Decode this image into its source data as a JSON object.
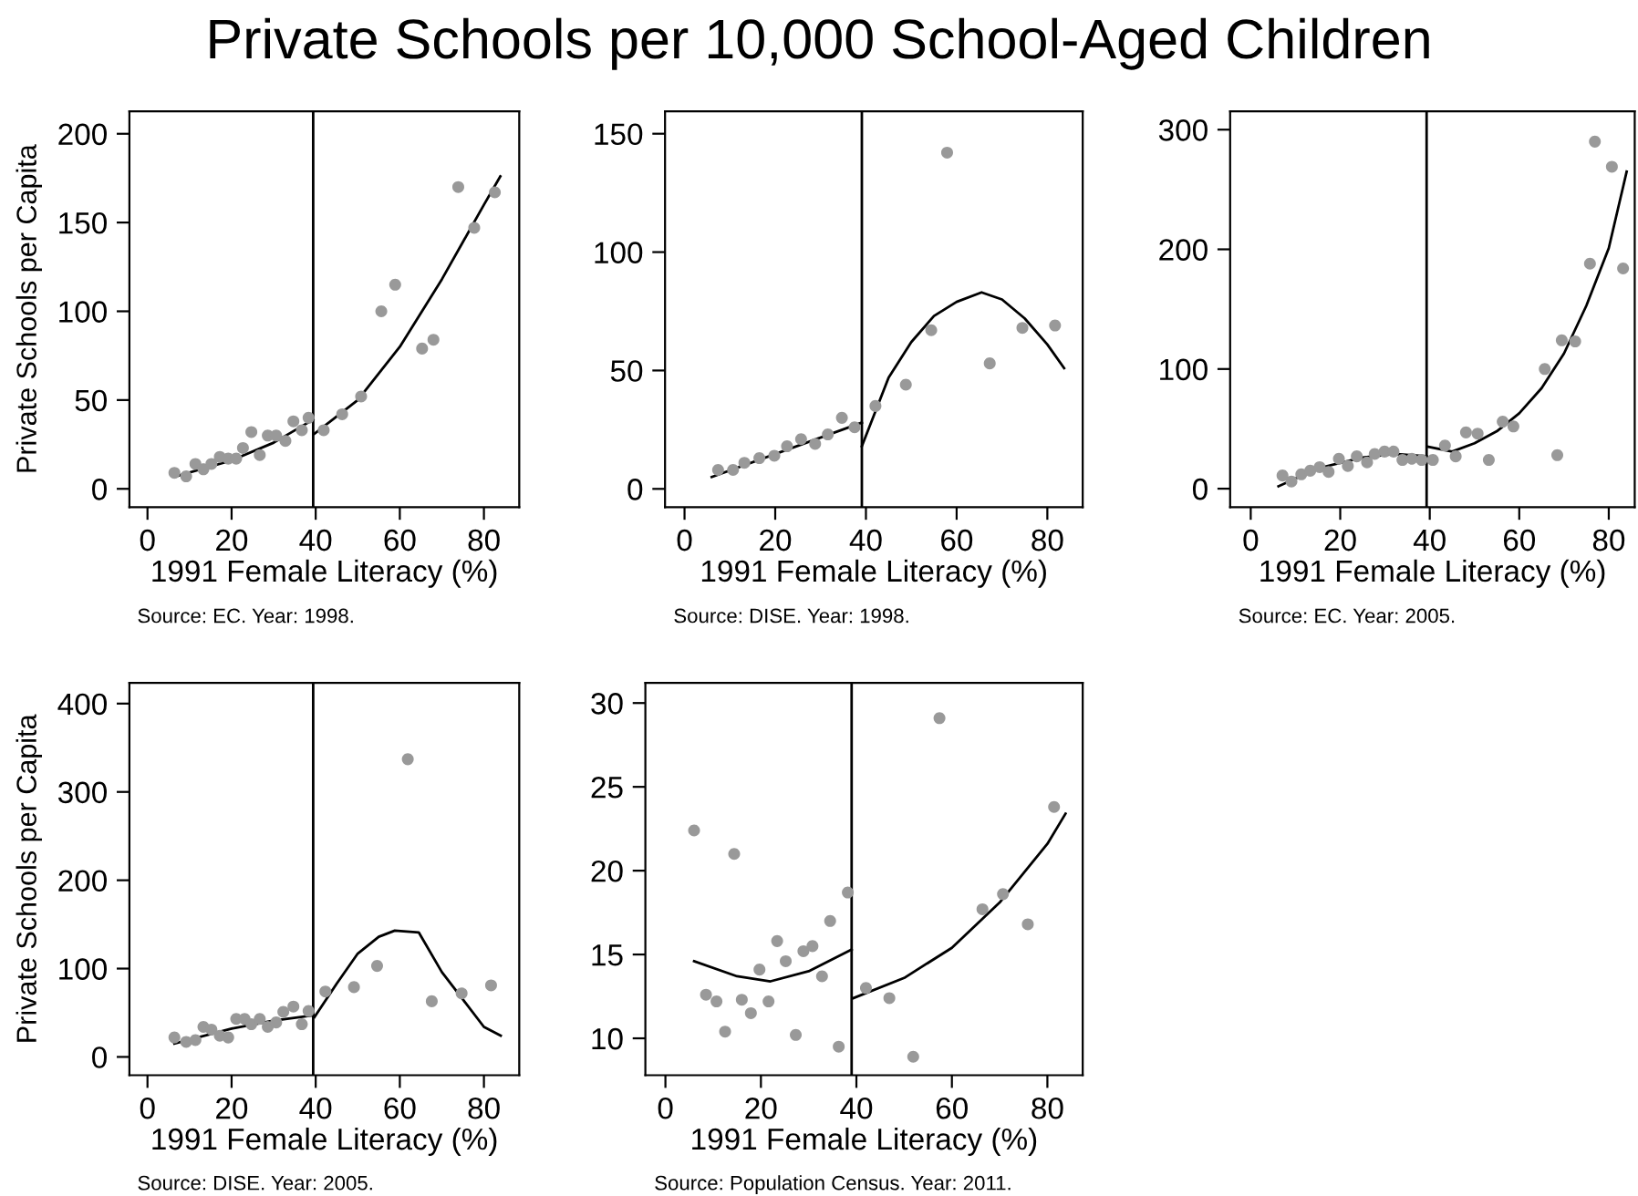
{
  "chart_data": [
    {
      "type": "scatter",
      "title": "Private Schools per 10,000 School-Aged Children",
      "xlabel": "1991 Female Literacy (%)",
      "ylabel": "Private Schools per Capita",
      "annotations": [
        "Source: EC. Year: 1998."
      ],
      "xlim": [
        -4.3,
        88.4
      ],
      "ylim": [
        -10.3,
        212.7
      ],
      "xticks": [
        0,
        20,
        40,
        60,
        80
      ],
      "yticks": [
        0,
        50,
        100,
        150,
        200
      ],
      "grid": false,
      "legend": false,
      "ref_lines": [
        {
          "axis": "x",
          "value": 39.4,
          "color": "#000000"
        }
      ],
      "series": [
        {
          "marker": "circle",
          "color": "#999999",
          "x": [
            6.4,
            9.2,
            11.4,
            13.3,
            15.2,
            17.2,
            19.2,
            21.1,
            22.7,
            24.7,
            26.7,
            28.6,
            30.6,
            32.8,
            34.7,
            36.7,
            38.3,
            41.9,
            46.3,
            50.8,
            55.6,
            58.9,
            65.3,
            68,
            73.9,
            77.7,
            82.6
          ],
          "values": [
            9,
            7,
            14,
            11,
            14,
            18,
            17,
            17,
            23,
            32,
            19,
            30,
            30,
            27,
            38,
            33,
            40,
            33,
            42,
            52,
            100,
            115,
            79,
            84,
            170,
            147,
            167
          ]
        },
        {
          "type": "line",
          "color": "#000000",
          "x": [
            6.8,
            20,
            30,
            39.4
          ],
          "values": [
            7,
            16,
            26,
            39
          ]
        },
        {
          "type": "line",
          "color": "#000000",
          "x": [
            39.7,
            50,
            60,
            70,
            80,
            83.9
          ],
          "values": [
            31,
            50,
            80,
            118,
            160,
            176
          ]
        }
      ]
    },
    {
      "type": "scatter",
      "xlabel": "1991 Female Literacy (%)",
      "annotations": [
        "Source: DISE. Year: 1998."
      ],
      "xlim": [
        -4.3,
        87.8
      ],
      "ylim": [
        -7.7,
        159.5
      ],
      "xticks": [
        0,
        20,
        40,
        60,
        80
      ],
      "yticks": [
        0,
        50,
        100,
        150
      ],
      "grid": false,
      "legend": false,
      "ref_lines": [
        {
          "axis": "x",
          "value": 39.1,
          "color": "#000000"
        }
      ],
      "series": [
        {
          "marker": "circle",
          "color": "#999999",
          "x": [
            7.4,
            10.7,
            13.2,
            16.5,
            19.8,
            22.6,
            25.7,
            28.8,
            31.6,
            34.7,
            37.5,
            42.1,
            48.8,
            54.4,
            57.9,
            67.3,
            74.5,
            81.7
          ],
          "values": [
            8,
            8,
            11,
            13,
            14,
            18,
            21,
            19,
            23,
            30,
            26,
            35,
            44,
            67,
            142,
            53,
            68,
            69
          ]
        },
        {
          "type": "line",
          "color": "#000000",
          "x": [
            6,
            39.1
          ],
          "values": [
            5,
            28
          ]
        },
        {
          "type": "line",
          "color": "#000000",
          "x": [
            39.1,
            45,
            50,
            55,
            60,
            65.5,
            70,
            75,
            80,
            83.7
          ],
          "values": [
            18,
            47,
            62,
            73,
            79,
            83,
            80,
            72,
            61,
            51
          ]
        }
      ]
    },
    {
      "type": "scatter",
      "xlabel": "1991 Female Literacy (%)",
      "annotations": [
        "Source: EC. Year: 2005."
      ],
      "xlim": [
        -4.6,
        85.8
      ],
      "ylim": [
        -15.4,
        315.4
      ],
      "xticks": [
        0,
        20,
        40,
        60,
        80
      ],
      "yticks": [
        0,
        100,
        200,
        300
      ],
      "grid": false,
      "legend": false,
      "ref_lines": [
        {
          "axis": "x",
          "value": 39.3,
          "color": "#000000"
        }
      ],
      "series": [
        {
          "marker": "circle",
          "color": "#999999",
          "x": [
            7.1,
            9.1,
            11.3,
            13.3,
            15.4,
            17.4,
            19.7,
            21.7,
            23.7,
            26,
            27.7,
            29.9,
            31.9,
            33.9,
            36,
            38.2,
            40.7,
            43.4,
            45.8,
            48.1,
            50.7,
            53.2,
            56.3,
            58.7,
            65.7,
            68.5,
            69.5,
            72.5,
            75.8,
            76.9,
            80.7,
            83.2
          ],
          "values": [
            11,
            6,
            12,
            15,
            18,
            14,
            25,
            19,
            27,
            22,
            29,
            31,
            31,
            24,
            25,
            24,
            24,
            36,
            27,
            47,
            46,
            24,
            56,
            52,
            100,
            28,
            124,
            123,
            188,
            290,
            269,
            184
          ]
        },
        {
          "type": "line",
          "color": "#000000",
          "x": [
            6.2,
            15,
            25,
            32,
            39.3
          ],
          "values": [
            2,
            17,
            26,
            29,
            27
          ]
        },
        {
          "type": "line",
          "color": "#000000",
          "x": [
            39.7,
            45,
            50,
            55,
            60,
            65,
            70,
            75,
            80,
            84
          ],
          "values": [
            35,
            31,
            38,
            48,
            63,
            84,
            113,
            153,
            201,
            265
          ]
        }
      ]
    },
    {
      "type": "scatter",
      "xlabel": "1991 Female Literacy (%)",
      "ylabel": "Private Schools per Capita",
      "annotations": [
        "Source: DISE. Year: 2005."
      ],
      "xlim": [
        -4.3,
        88.4
      ],
      "ylim": [
        -20.7,
        423.4
      ],
      "xticks": [
        0,
        20,
        40,
        60,
        80
      ],
      "yticks": [
        0,
        100,
        200,
        300,
        400
      ],
      "grid": false,
      "legend": false,
      "ref_lines": [
        {
          "axis": "x",
          "value": 39.4,
          "color": "#000000"
        }
      ],
      "series": [
        {
          "marker": "circle",
          "color": "#999999",
          "x": [
            6.4,
            9.2,
            11.4,
            13.3,
            15.2,
            17.2,
            19.2,
            21.1,
            23.1,
            24.7,
            26.7,
            28.6,
            30.6,
            32.3,
            34.7,
            36.7,
            38.3,
            42.3,
            49.1,
            54.6,
            61.9,
            67.6,
            74.7,
            81.7
          ],
          "values": [
            22,
            17,
            19,
            34,
            31,
            24,
            22,
            43,
            43,
            37,
            43,
            34,
            39,
            51,
            57,
            37,
            52,
            74,
            79,
            103,
            337,
            63,
            72,
            81
          ]
        },
        {
          "type": "line",
          "color": "#000000",
          "x": [
            6.4,
            20,
            30,
            39.4
          ],
          "values": [
            15,
            32,
            41,
            47
          ]
        },
        {
          "type": "line",
          "color": "#000000",
          "x": [
            39.7,
            45,
            50,
            55,
            58.8,
            64.5,
            70,
            75,
            80,
            84
          ],
          "values": [
            45,
            83,
            117,
            136,
            143,
            141,
            96,
            65,
            34,
            24
          ]
        }
      ]
    },
    {
      "type": "scatter",
      "xlabel": "1991 Female Literacy (%)",
      "annotations": [
        "Source: Population Census. Year: 2011."
      ],
      "xlim": [
        -4.2,
        87.4
      ],
      "ylim": [
        7.8,
        31.2
      ],
      "xticks": [
        0,
        20,
        40,
        60,
        80
      ],
      "yticks": [
        10,
        15,
        20,
        25,
        30
      ],
      "grid": false,
      "legend": false,
      "ref_lines": [
        {
          "axis": "x",
          "value": 39.0,
          "color": "#000000"
        }
      ],
      "series": [
        {
          "marker": "circle",
          "color": "#999999",
          "x": [
            6,
            8.5,
            10.7,
            12.5,
            14.4,
            16,
            17.9,
            19.7,
            21.6,
            23.4,
            25.2,
            27.3,
            28.9,
            30.8,
            32.8,
            34.5,
            36.3,
            38.2,
            42,
            46.9,
            51.9,
            57.4,
            66.4,
            70.7,
            75.9,
            81.4
          ],
          "values": [
            22.4,
            12.6,
            12.2,
            10.4,
            21,
            12.3,
            11.5,
            14.1,
            12.2,
            15.8,
            14.6,
            10.2,
            15.2,
            15.5,
            13.7,
            17,
            9.5,
            18.7,
            13,
            12.4,
            8.9,
            29.1,
            17.7,
            18.6,
            16.8,
            23.8
          ]
        },
        {
          "type": "line",
          "color": "#000000",
          "x": [
            6,
            15,
            22,
            30,
            39
          ],
          "values": [
            14.6,
            13.7,
            13.4,
            14,
            15.3
          ]
        },
        {
          "type": "line",
          "color": "#000000",
          "x": [
            39.4,
            50,
            60,
            70,
            80,
            83.8
          ],
          "values": [
            12.4,
            13.6,
            15.4,
            18.1,
            21.6,
            23.4
          ]
        }
      ]
    }
  ]
}
